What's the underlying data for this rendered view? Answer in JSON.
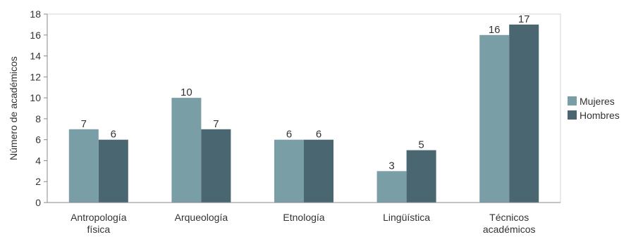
{
  "chart_data": {
    "type": "bar",
    "ylabel": "Número de académicos",
    "ylim": [
      0,
      18
    ],
    "yticks": [
      0,
      2,
      4,
      6,
      8,
      10,
      12,
      14,
      16,
      18
    ],
    "grid": false,
    "legend_position": "right",
    "categories": [
      [
        "Antropología",
        "física"
      ],
      [
        "Arqueología"
      ],
      [
        "Etnología"
      ],
      [
        "Lingüística"
      ],
      [
        "Técnicos",
        "académicos"
      ]
    ],
    "series": [
      {
        "name": "Mujeres",
        "color": "#7a9ea6",
        "values": [
          7,
          10,
          6,
          3,
          16
        ]
      },
      {
        "name": "Hombres",
        "color": "#4a6670",
        "values": [
          6,
          7,
          6,
          5,
          17
        ]
      }
    ]
  }
}
